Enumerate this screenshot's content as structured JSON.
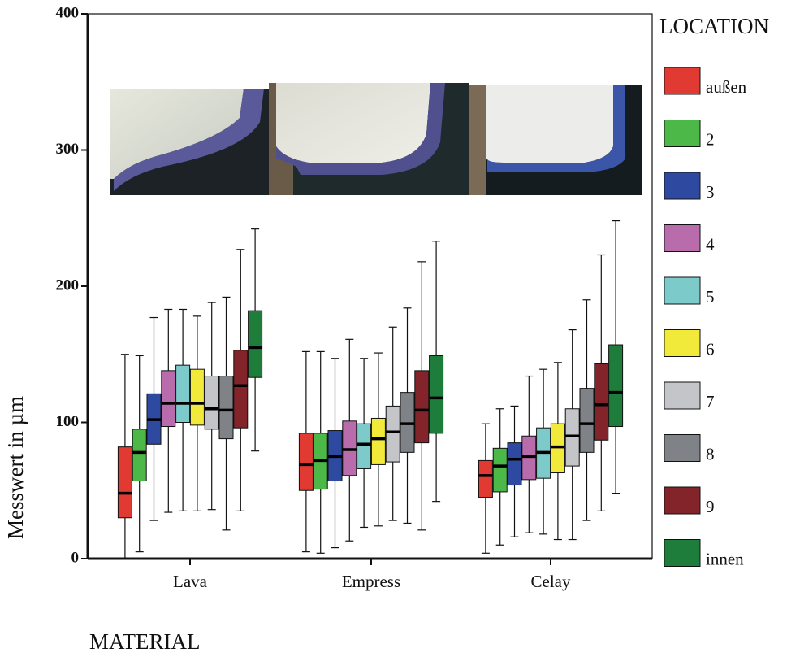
{
  "chart_data": {
    "type": "box",
    "y_label": "Messwert in µm",
    "x_label": "MATERIAL",
    "legend_title": "LOCATION",
    "categories": [
      "Lava",
      "Empress",
      "Celay"
    ],
    "ylim": [
      0,
      400
    ],
    "yticks": [
      0,
      100,
      200,
      300,
      400
    ],
    "series": [
      {
        "name": "außen",
        "color": "#e03a32",
        "values": [
          {
            "min": 0,
            "q1": 30,
            "median": 48,
            "q3": 82,
            "max": 150
          },
          {
            "min": 5,
            "q1": 50,
            "median": 69,
            "q3": 92,
            "max": 152
          },
          {
            "min": 4,
            "q1": 45,
            "median": 61,
            "q3": 72,
            "max": 99
          }
        ]
      },
      {
        "name": "2",
        "color": "#4cb848",
        "values": [
          {
            "min": 5,
            "q1": 57,
            "median": 78,
            "q3": 95,
            "max": 149
          },
          {
            "min": 4,
            "q1": 51,
            "median": 72,
            "q3": 92,
            "max": 152
          },
          {
            "min": 10,
            "q1": 49,
            "median": 68,
            "q3": 81,
            "max": 110
          }
        ]
      },
      {
        "name": "3",
        "color": "#2e4aa0",
        "values": [
          {
            "min": 28,
            "q1": 84,
            "median": 102,
            "q3": 121,
            "max": 177
          },
          {
            "min": 8,
            "q1": 57,
            "median": 75,
            "q3": 94,
            "max": 147
          },
          {
            "min": 16,
            "q1": 54,
            "median": 73,
            "q3": 85,
            "max": 112
          }
        ]
      },
      {
        "name": "4",
        "color": "#b86cac",
        "values": [
          {
            "min": 34,
            "q1": 97,
            "median": 114,
            "q3": 138,
            "max": 183
          },
          {
            "min": 13,
            "q1": 61,
            "median": 80,
            "q3": 101,
            "max": 161
          },
          {
            "min": 19,
            "q1": 58,
            "median": 75,
            "q3": 90,
            "max": 134
          }
        ]
      },
      {
        "name": "5",
        "color": "#7ccaca",
        "values": [
          {
            "min": 35,
            "q1": 100,
            "median": 114,
            "q3": 142,
            "max": 183
          },
          {
            "min": 23,
            "q1": 66,
            "median": 84,
            "q3": 99,
            "max": 147
          },
          {
            "min": 18,
            "q1": 59,
            "median": 78,
            "q3": 96,
            "max": 139
          }
        ]
      },
      {
        "name": "6",
        "color": "#f2ea3a",
        "values": [
          {
            "min": 35,
            "q1": 98,
            "median": 114,
            "q3": 139,
            "max": 178
          },
          {
            "min": 24,
            "q1": 69,
            "median": 88,
            "q3": 103,
            "max": 151
          },
          {
            "min": 14,
            "q1": 63,
            "median": 82,
            "q3": 99,
            "max": 144
          }
        ]
      },
      {
        "name": "7",
        "color": "#c4c5c8",
        "values": [
          {
            "min": 36,
            "q1": 95,
            "median": 110,
            "q3": 134,
            "max": 188
          },
          {
            "min": 28,
            "q1": 71,
            "median": 93,
            "q3": 112,
            "max": 170
          },
          {
            "min": 14,
            "q1": 68,
            "median": 90,
            "q3": 110,
            "max": 168
          }
        ]
      },
      {
        "name": "8",
        "color": "#7f8286",
        "values": [
          {
            "min": 21,
            "q1": 88,
            "median": 109,
            "q3": 134,
            "max": 192
          },
          {
            "min": 26,
            "q1": 78,
            "median": 99,
            "q3": 122,
            "max": 184
          },
          {
            "min": 28,
            "q1": 78,
            "median": 99,
            "q3": 125,
            "max": 190
          }
        ]
      },
      {
        "name": "9",
        "color": "#82242a",
        "values": [
          {
            "min": 35,
            "q1": 96,
            "median": 127,
            "q3": 153,
            "max": 227
          },
          {
            "min": 21,
            "q1": 85,
            "median": 109,
            "q3": 138,
            "max": 218
          },
          {
            "min": 35,
            "q1": 87,
            "median": 113,
            "q3": 143,
            "max": 223
          }
        ]
      },
      {
        "name": "innen",
        "color": "#1f7d3c",
        "values": [
          {
            "min": 79,
            "q1": 133,
            "median": 155,
            "q3": 182,
            "max": 242
          },
          {
            "min": 42,
            "q1": 92,
            "median": 118,
            "q3": 149,
            "max": 233
          },
          {
            "min": 48,
            "q1": 97,
            "median": 122,
            "q3": 157,
            "max": 248
          }
        ]
      }
    ]
  }
}
